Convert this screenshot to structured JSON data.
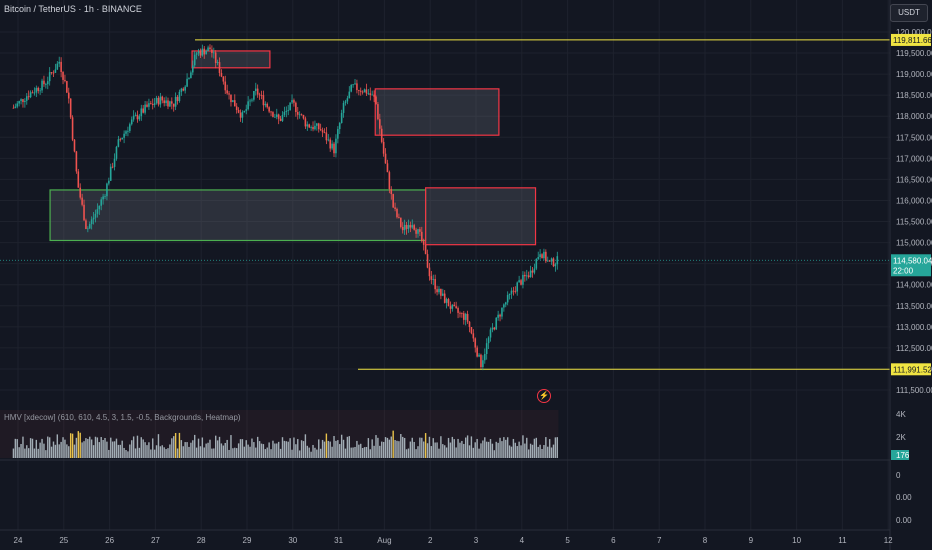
{
  "header": {
    "title": "Bitcoin / TetherUS · 1h · BINANCE",
    "currency_button": "USDT"
  },
  "indicator": {
    "label": "HMV [xdecow] (610, 610, 4.5, 3, 1.5, -0.5, Backgrounds, Heatmap)",
    "axis_ticks": [
      "4K",
      "2K",
      "0"
    ],
    "current_badge": "176"
  },
  "lower_pane": {
    "axis_ticks": [
      "0",
      "0.00",
      "0.00"
    ]
  },
  "colors": {
    "background": "#131722",
    "bull": "#26a69a",
    "bear": "#ef5350",
    "accent_line": "#f0e442",
    "last_price": "#26a69a",
    "zone_supply": "#f23645",
    "zone_demand": "#4caf50"
  },
  "chart_data": {
    "type": "candlestick",
    "symbol": "Bitcoin / TetherUS",
    "interval": "1h",
    "exchange": "BINANCE",
    "y_ticks": [
      111500,
      112000,
      112500,
      113000,
      113500,
      114000,
      114500,
      115000,
      115500,
      116000,
      116500,
      117000,
      117500,
      118000,
      118500,
      119000,
      119500,
      120000
    ],
    "y_tick_labels": [
      "111,500.00",
      "112,000.00",
      "112,500.00",
      "113,000.00",
      "113,500.00",
      "114,000.00",
      "114,500.00",
      "115,000.00",
      "115,500.00",
      "116,000.00",
      "116,500.00",
      "117,000.00",
      "117,500.00",
      "118,000.00",
      "118,500.00",
      "119,000.00",
      "119,500.00",
      "120,000.00"
    ],
    "x_tick_labels": [
      "24",
      "25",
      "26",
      "27",
      "28",
      "29",
      "30",
      "31",
      "Aug",
      "2",
      "3",
      "4",
      "5",
      "6",
      "7",
      "8",
      "9",
      "10",
      "11",
      "12"
    ],
    "ylim": [
      111250,
      120250
    ],
    "horizontal_lines": [
      {
        "price": 119811.66,
        "label": "119,811.66"
      },
      {
        "price": 111991.52,
        "label": "111,991.52"
      }
    ],
    "last_price": {
      "value": "114,580.04",
      "countdown": "22:00",
      "price": 114580.04
    },
    "zones": [
      {
        "kind": "supply",
        "from_day": 27.8,
        "to_day": 29.5,
        "top": 119550,
        "bottom": 119150
      },
      {
        "kind": "supply",
        "from_day": 31.8,
        "to_day": 34.5,
        "top": 118650,
        "bottom": 117550
      },
      {
        "kind": "demand",
        "from_day": 24.7,
        "to_day": 32.9,
        "top": 116250,
        "bottom": 115050
      },
      {
        "kind": "supply",
        "from_day": 32.9,
        "to_day": 35.3,
        "top": 116300,
        "bottom": 114950
      }
    ],
    "price_path": [
      {
        "day": 23.9,
        "price": 118200
      },
      {
        "day": 24.2,
        "price": 118500
      },
      {
        "day": 24.6,
        "price": 118800
      },
      {
        "day": 24.9,
        "price": 119300
      },
      {
        "day": 25.1,
        "price": 118500
      },
      {
        "day": 25.3,
        "price": 116400
      },
      {
        "day": 25.5,
        "price": 115300
      },
      {
        "day": 25.7,
        "price": 115700
      },
      {
        "day": 25.9,
        "price": 116200
      },
      {
        "day": 26.2,
        "price": 117400
      },
      {
        "day": 26.5,
        "price": 117900
      },
      {
        "day": 26.8,
        "price": 118200
      },
      {
        "day": 27.1,
        "price": 118400
      },
      {
        "day": 27.4,
        "price": 118300
      },
      {
        "day": 27.7,
        "price": 118900
      },
      {
        "day": 27.9,
        "price": 119500
      },
      {
        "day": 28.2,
        "price": 119600
      },
      {
        "day": 28.4,
        "price": 119100
      },
      {
        "day": 28.6,
        "price": 118500
      },
      {
        "day": 28.9,
        "price": 118000
      },
      {
        "day": 29.2,
        "price": 118600
      },
      {
        "day": 29.4,
        "price": 118300
      },
      {
        "day": 29.7,
        "price": 117900
      },
      {
        "day": 30.0,
        "price": 118300
      },
      {
        "day": 30.3,
        "price": 117800
      },
      {
        "day": 30.6,
        "price": 117700
      },
      {
        "day": 30.9,
        "price": 117200
      },
      {
        "day": 31.1,
        "price": 118200
      },
      {
        "day": 31.3,
        "price": 118700
      },
      {
        "day": 31.6,
        "price": 118600
      },
      {
        "day": 31.8,
        "price": 118400
      },
      {
        "day": 32.0,
        "price": 117000
      },
      {
        "day": 32.2,
        "price": 115800
      },
      {
        "day": 32.4,
        "price": 115300
      },
      {
        "day": 32.6,
        "price": 115500
      },
      {
        "day": 32.8,
        "price": 115100
      },
      {
        "day": 33.0,
        "price": 114200
      },
      {
        "day": 33.2,
        "price": 113800
      },
      {
        "day": 33.5,
        "price": 113400
      },
      {
        "day": 33.8,
        "price": 113200
      },
      {
        "day": 34.0,
        "price": 112500
      },
      {
        "day": 34.1,
        "price": 112100
      },
      {
        "day": 34.3,
        "price": 112800
      },
      {
        "day": 34.6,
        "price": 113500
      },
      {
        "day": 34.9,
        "price": 114000
      },
      {
        "day": 35.2,
        "price": 114300
      },
      {
        "day": 35.4,
        "price": 114800
      },
      {
        "day": 35.6,
        "price": 114500
      },
      {
        "day": 35.8,
        "price": 114580
      }
    ]
  }
}
